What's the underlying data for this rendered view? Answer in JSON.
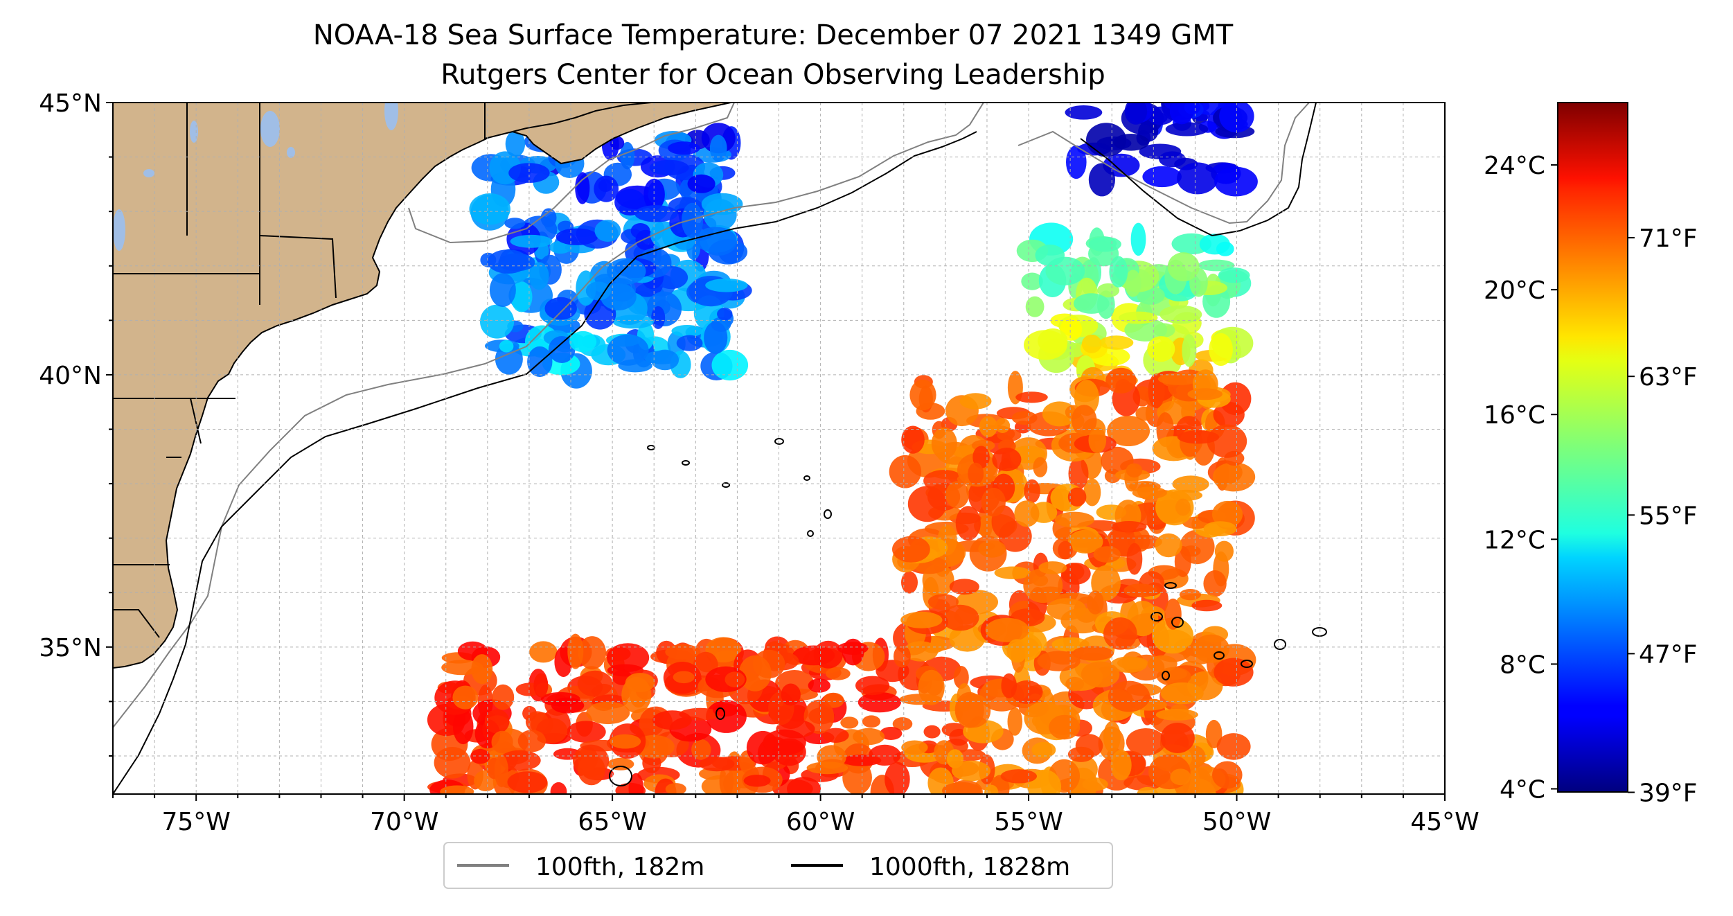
{
  "title": {
    "line1": "NOAA-18 Sea Surface Temperature: December 07 2021 1349 GMT",
    "line2": "Rutgers Center for Ocean Observing Leadership"
  },
  "map": {
    "projection": "plate-carree",
    "lon_range": [
      -77,
      -45
    ],
    "lat_range": [
      32.3,
      45
    ],
    "land_color": "#d2b48c",
    "lake_color": "#a0bee6",
    "ocean_color": "#ffffff",
    "gridlines": true,
    "lon_ticks": [
      {
        "value": -75,
        "label": "75°W"
      },
      {
        "value": -70,
        "label": "70°W"
      },
      {
        "value": -65,
        "label": "65°W"
      },
      {
        "value": -60,
        "label": "60°W"
      },
      {
        "value": -55,
        "label": "55°W"
      },
      {
        "value": -50,
        "label": "50°W"
      },
      {
        "value": -45,
        "label": "45°W"
      }
    ],
    "lat_ticks": [
      {
        "value": 45,
        "label": "45°N"
      },
      {
        "value": 40,
        "label": "40°N"
      },
      {
        "value": 35,
        "label": "35°N"
      }
    ],
    "swath": {
      "type": "heatmap",
      "variable": "sea surface temperature",
      "units": "°C",
      "clouds_masked": true,
      "regions": [
        {
          "lon": [
            -68,
            -62
          ],
          "lat": [
            40,
            44.4
          ],
          "sst_c": 10
        },
        {
          "lon": [
            -54,
            -50
          ],
          "lat": [
            43.5,
            45
          ],
          "sst_c": 6
        },
        {
          "lon": [
            -55,
            -50
          ],
          "lat": [
            40,
            42.5
          ],
          "sst_c": 17
        },
        {
          "lon": [
            -58,
            -50
          ],
          "lat": [
            32.3,
            40
          ],
          "sst_c": 21
        },
        {
          "lon": [
            -69,
            -58
          ],
          "lat": [
            32.3,
            35
          ],
          "sst_c": 22
        }
      ]
    }
  },
  "colorbar": {
    "cmap": "jet",
    "min_c": 3.9,
    "max_c": 26,
    "celsius_ticks": [
      {
        "value": 4,
        "label": "4°C"
      },
      {
        "value": 8,
        "label": "8°C"
      },
      {
        "value": 12,
        "label": "12°C"
      },
      {
        "value": 16,
        "label": "16°C"
      },
      {
        "value": 20,
        "label": "20°C"
      },
      {
        "value": 24,
        "label": "24°C"
      }
    ],
    "fahrenheit_ticks": [
      {
        "value": 39,
        "label": "39°F"
      },
      {
        "value": 47,
        "label": "47°F"
      },
      {
        "value": 55,
        "label": "55°F"
      },
      {
        "value": 63,
        "label": "63°F"
      },
      {
        "value": 71,
        "label": "71°F"
      }
    ]
  },
  "legend": {
    "items": [
      {
        "label": "100fth, 182m",
        "color": "#808080"
      },
      {
        "label": "1000fth, 1828m",
        "color": "#000000"
      }
    ]
  }
}
